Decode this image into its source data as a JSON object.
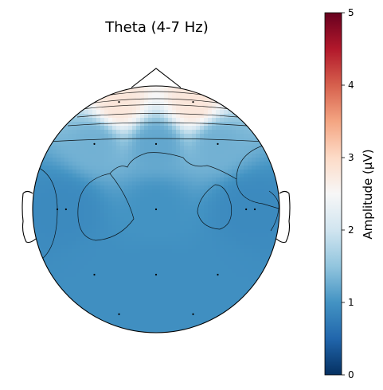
{
  "chart_data": {
    "type": "heatmap",
    "title": "Theta (4-7 Hz)",
    "colorbar": {
      "label": "Amplitude (μV)",
      "range": [
        0,
        5
      ],
      "ticks": [
        "0",
        "1",
        "2",
        "3",
        "4",
        "5"
      ],
      "colormap": "RdBu_r",
      "placement": "right"
    },
    "electrodes": [
      {
        "x": -0.3,
        "y": 0.87,
        "value": 2.8
      },
      {
        "x": 0.3,
        "y": 0.87,
        "value": 2.8
      },
      {
        "x": -0.5,
        "y": 0.53,
        "value": 1.3
      },
      {
        "x": 0.0,
        "y": 0.53,
        "value": 1.2
      },
      {
        "x": 0.5,
        "y": 0.53,
        "value": 1.3
      },
      {
        "x": -0.8,
        "y": 0.0,
        "value": 0.9
      },
      {
        "x": -0.73,
        "y": 0.0,
        "value": 0.9
      },
      {
        "x": 0.0,
        "y": 0.0,
        "value": 1.0
      },
      {
        "x": 0.73,
        "y": 0.0,
        "value": 0.9
      },
      {
        "x": 0.8,
        "y": 0.0,
        "value": 0.9
      },
      {
        "x": -0.5,
        "y": -0.53,
        "value": 0.95
      },
      {
        "x": 0.0,
        "y": -0.53,
        "value": 0.95
      },
      {
        "x": 0.5,
        "y": -0.53,
        "value": 0.95
      },
      {
        "x": -0.3,
        "y": -0.85,
        "value": 0.95
      },
      {
        "x": 0.3,
        "y": -0.85,
        "value": 0.95
      }
    ]
  }
}
